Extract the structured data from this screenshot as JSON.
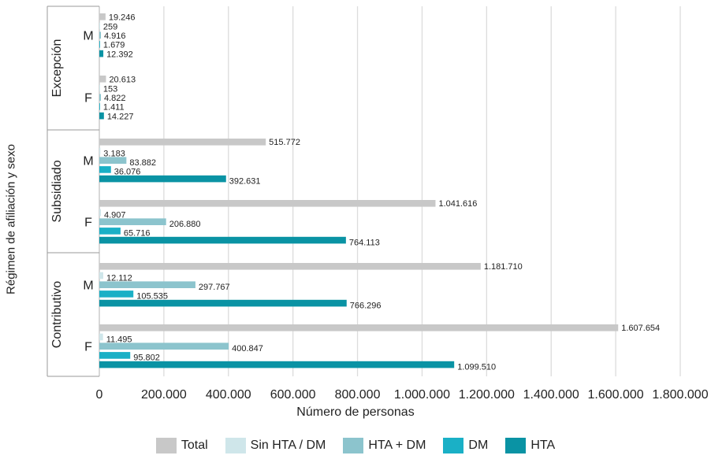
{
  "title_fragment": "",
  "chart_data": {
    "type": "bar",
    "orientation": "horizontal",
    "title": "",
    "xlabel": "Número de personas",
    "ylabel": "Régimen de afiliación y sexo",
    "xlim": [
      0,
      1800000
    ],
    "x_ticks": [
      "0",
      "200.000",
      "400.000",
      "600.000",
      "800.000",
      "1.000.000",
      "1.200.000",
      "1.400.000",
      "1.600.000",
      "1.800.000"
    ],
    "x_tick_values": [
      0,
      200000,
      400000,
      600000,
      800000,
      1000000,
      1200000,
      1400000,
      1600000,
      1800000
    ],
    "grid": "vertical",
    "legend_position": "bottom",
    "series_names": [
      "Total",
      "Sin HTA / DM",
      "HTA + DM",
      "DM",
      "HTA"
    ],
    "series_colors": [
      "#c8c8c8",
      "#cfe6ea",
      "#8cc4cd",
      "#1ab0c6",
      "#0a93a4"
    ],
    "groups": [
      {
        "name": "Excepción",
        "subgroups": [
          {
            "name": "M",
            "values": [
              19246,
              259,
              4916,
              1679,
              12392
            ],
            "labels": [
              "19.246",
              "259",
              "4.916",
              "1.679",
              "12.392"
            ]
          },
          {
            "name": "F",
            "values": [
              20613,
              153,
              4822,
              1411,
              14227
            ],
            "labels": [
              "20.613",
              "153",
              "4.822",
              "1.411",
              "14.227"
            ]
          }
        ]
      },
      {
        "name": "Subsidiado",
        "subgroups": [
          {
            "name": "M",
            "values": [
              515772,
              3183,
              83882,
              36076,
              392631
            ],
            "labels": [
              "515.772",
              "3.183",
              "83.882",
              "36.076",
              "392.631"
            ]
          },
          {
            "name": "F",
            "values": [
              1041616,
              4907,
              206880,
              65716,
              764113
            ],
            "labels": [
              "1.041.616",
              "4.907",
              "206.880",
              "65.716",
              "764.113"
            ]
          }
        ]
      },
      {
        "name": "Contributivo",
        "subgroups": [
          {
            "name": "M",
            "values": [
              1181710,
              12112,
              297767,
              105535,
              766296
            ],
            "labels": [
              "1.181.710",
              "12.112",
              "297.767",
              "105.535",
              "766.296"
            ]
          },
          {
            "name": "F",
            "values": [
              1607654,
              11495,
              400847,
              95802,
              1099510
            ],
            "labels": [
              "1.607.654",
              "11.495",
              "400.847",
              "95.802",
              "1.099.510"
            ]
          }
        ]
      }
    ]
  }
}
